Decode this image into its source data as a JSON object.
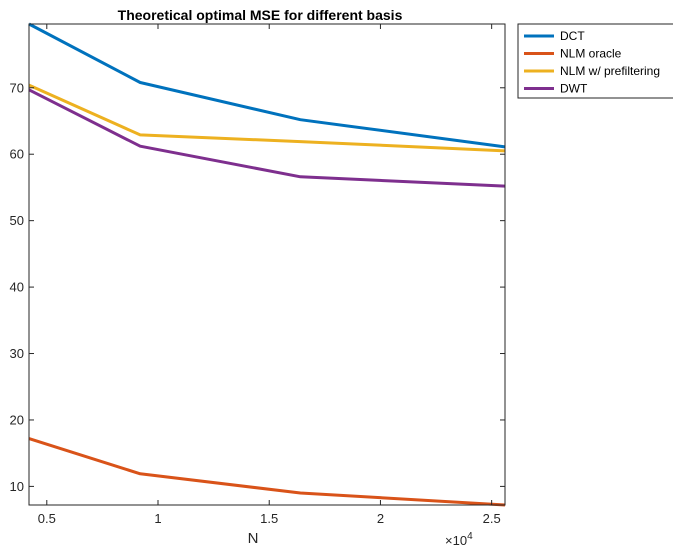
{
  "chart_data": {
    "type": "line",
    "title": "Theoretical optimal MSE for different basis",
    "xlabel": "N",
    "ylabel": "",
    "x_exponent_label": "×10",
    "x_exponent_power": "4",
    "xlim": [
      0.42,
      2.56
    ],
    "ylim": [
      7.2,
      79.6
    ],
    "xticks": [
      0.5,
      1,
      1.5,
      2,
      2.5
    ],
    "xtick_labels": [
      "0.5",
      "1",
      "1.5",
      "2",
      "2.5"
    ],
    "yticks": [
      10,
      20,
      30,
      40,
      50,
      60,
      70
    ],
    "ytick_labels": [
      "10",
      "20",
      "30",
      "40",
      "50",
      "60",
      "70"
    ],
    "grid": false,
    "legend_position": "outside-top-right",
    "x": [
      0.42,
      0.92,
      1.64,
      2.56
    ],
    "series": [
      {
        "name": "DCT",
        "color": "#0072BD",
        "values": [
          79.6,
          70.8,
          65.2,
          61.1
        ]
      },
      {
        "name": "NLM oracle",
        "color": "#D95319",
        "values": [
          17.2,
          11.9,
          9.0,
          7.2
        ]
      },
      {
        "name": "NLM w/ prefiltering",
        "color": "#EDB120",
        "values": [
          70.4,
          62.9,
          61.9,
          60.5
        ]
      },
      {
        "name": "DWT",
        "color": "#7E2F8E",
        "values": [
          69.7,
          61.2,
          56.6,
          55.2
        ]
      }
    ]
  }
}
